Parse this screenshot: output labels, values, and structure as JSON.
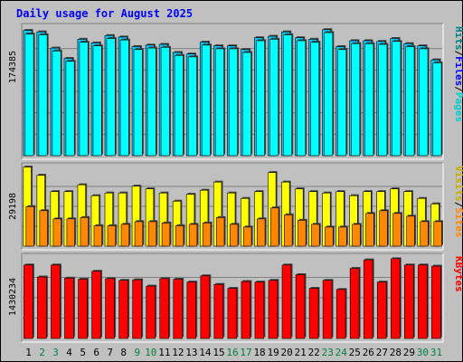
{
  "chart_data": {
    "type": "bar",
    "title": "Daily usage for August 2025",
    "colors": {
      "title": "#0000ff",
      "frame_bg": "#c0c0c0",
      "hits": "#00ccff",
      "files": "#00ffff",
      "pages": "#00cccc",
      "visits": "#ffff00",
      "sites": "#ff8800",
      "kbytes": "#ff0000",
      "grid": "#808080",
      "label_hits": "#008080",
      "label_files": "#0000ff",
      "label_pages": "#00cccc",
      "label_visits": "#ccaa00",
      "label_sites": "#ff8800",
      "label_kbytes": "#ff0000",
      "weekend_day": "#00803c",
      "weekday_day": "#000000"
    },
    "days": [
      "1",
      "2",
      "3",
      "4",
      "5",
      "6",
      "7",
      "8",
      "9",
      "10",
      "11",
      "12",
      "13",
      "14",
      "15",
      "16",
      "17",
      "18",
      "19",
      "20",
      "21",
      "22",
      "23",
      "24",
      "25",
      "26",
      "27",
      "28",
      "29",
      "30",
      "31"
    ],
    "weekend_days": [
      "2",
      "3",
      "9",
      "10",
      "16",
      "17",
      "23",
      "24",
      "30",
      "31"
    ],
    "panels": [
      {
        "id": "hits",
        "max_label": "174385",
        "legend": [
          {
            "text": "Hits",
            "color_key": "label_hits"
          },
          {
            "text": "/",
            "color_key": "weekday_day"
          },
          {
            "text": "Files",
            "color_key": "label_files"
          },
          {
            "text": "/",
            "color_key": "weekday_day"
          },
          {
            "text": "Pages",
            "color_key": "label_pages"
          }
        ],
        "ymax": 174385,
        "series": [
          {
            "name": "Hits",
            "color_key": "hits",
            "values": [
              170000,
              168000,
              146000,
              132000,
              158000,
              153000,
              163000,
              161000,
              148000,
              150000,
              151000,
              140000,
              138000,
              154000,
              149000,
              149000,
              144000,
              160000,
              162000,
              168000,
              160000,
              158000,
              171000,
              148000,
              156000,
              156000,
              155000,
              159000,
              152000,
              149000,
              130000
            ]
          },
          {
            "name": "Files",
            "color_key": "files",
            "values": [
              165000,
              164000,
              142000,
              128000,
              154000,
              149000,
              159000,
              157000,
              144000,
              146000,
              147000,
              136000,
              134000,
              150000,
              145000,
              145000,
              140000,
              156000,
              158000,
              164000,
              156000,
              154000,
              167000,
              144000,
              152000,
              152000,
              151000,
              155000,
              148000,
              145000,
              126000
            ]
          },
          {
            "name": "Pages",
            "color_key": "pages",
            "values": [
              0,
              0,
              0,
              0,
              0,
              0,
              0,
              0,
              0,
              0,
              0,
              0,
              0,
              0,
              0,
              0,
              0,
              0,
              0,
              0,
              0,
              0,
              0,
              0,
              0,
              0,
              0,
              0,
              0,
              0,
              0
            ]
          }
        ]
      },
      {
        "id": "visits",
        "max_label": "29198",
        "legend": [
          {
            "text": "Visits",
            "color_key": "label_visits"
          },
          {
            "text": "/",
            "color_key": "weekday_day"
          },
          {
            "text": "Sites",
            "color_key": "label_sites"
          }
        ],
        "ymax": 29198,
        "series": [
          {
            "name": "Visits",
            "color_key": "visits",
            "values": [
              29000,
              26000,
              20000,
              20000,
              22500,
              18500,
              19500,
              19500,
              22000,
              21000,
              19500,
              16500,
              19000,
              20500,
              23500,
              19500,
              17500,
              20000,
              27000,
              23500,
              21000,
              20000,
              19500,
              20000,
              18500,
              20000,
              20000,
              21000,
              20000,
              17500,
              15500
            ]
          },
          {
            "name": "Sites",
            "color_key": "sites",
            "values": [
              14500,
              13000,
              10000,
              10000,
              10500,
              7500,
              7500,
              8000,
              9000,
              9000,
              8500,
              7500,
              8000,
              8500,
              10500,
              8000,
              7000,
              10000,
              14000,
              11500,
              9500,
              8000,
              7000,
              7000,
              8000,
              12000,
              13000,
              12000,
              11000,
              9000,
              9000
            ]
          }
        ]
      },
      {
        "id": "kbytes",
        "max_label": "1430234",
        "legend": [
          {
            "text": "KBytes",
            "color_key": "label_kbytes"
          }
        ],
        "ymax": 1430234,
        "series": [
          {
            "name": "KBytes",
            "color_key": "kbytes",
            "values": [
              1290000,
              1080000,
              1290000,
              1060000,
              1040000,
              1180000,
              1050000,
              1020000,
              1030000,
              920000,
              1050000,
              1040000,
              990000,
              1100000,
              950000,
              880000,
              1000000,
              990000,
              1020000,
              1290000,
              1120000,
              880000,
              1020000,
              860000,
              1230000,
              1380000,
              990000,
              1400000,
              1290000,
              1290000,
              1270000
            ]
          }
        ]
      }
    ]
  }
}
